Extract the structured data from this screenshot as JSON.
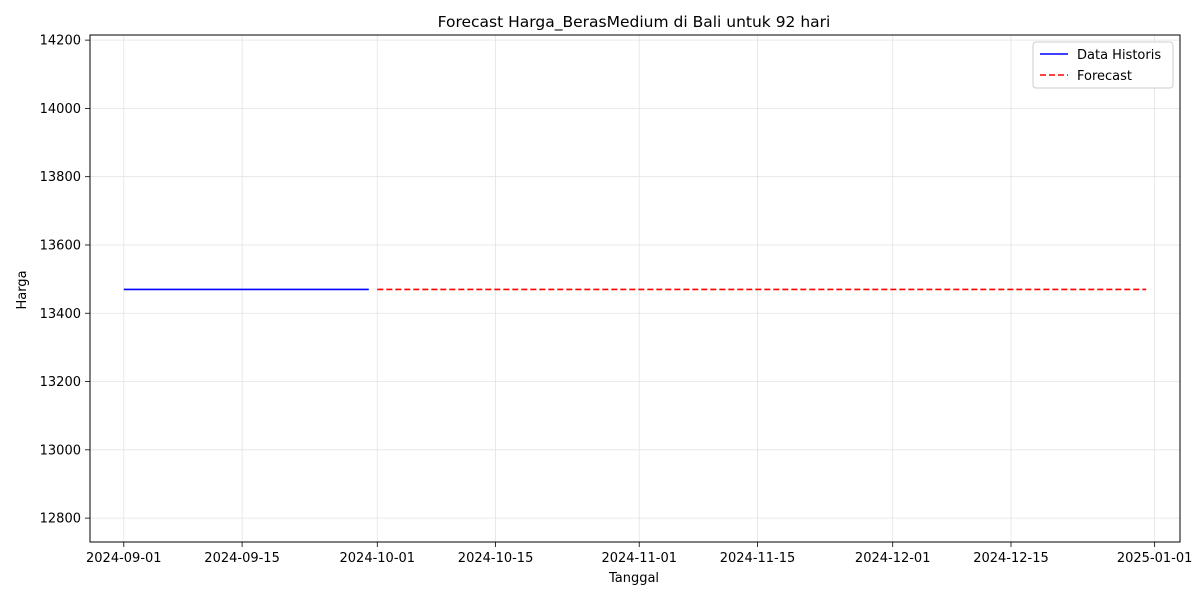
{
  "chart_data": {
    "type": "line",
    "title": "Forecast Harga_BerasMedium di Bali untuk 92 hari",
    "xlabel": "Tanggal",
    "ylabel": "Harga",
    "xlim": [
      "2024-08-28",
      "2025-01-04"
    ],
    "ylim": [
      12730,
      14215
    ],
    "x_ticks": [
      "2024-09-01",
      "2024-09-15",
      "2024-10-01",
      "2024-10-15",
      "2024-11-01",
      "2024-11-15",
      "2024-12-01",
      "2024-12-15",
      "2025-01-01"
    ],
    "y_ticks": [
      12800,
      13000,
      13200,
      13400,
      13600,
      13800,
      14000,
      14200
    ],
    "grid": true,
    "legend_position": "top-right",
    "series": [
      {
        "name": "Data Historis",
        "color": "#0000ff",
        "style": "solid",
        "points": [
          {
            "x": "2024-09-01",
            "y": 13470
          },
          {
            "x": "2024-09-30",
            "y": 13470
          }
        ]
      },
      {
        "name": "Forecast",
        "color": "#ff0000",
        "style": "dashed",
        "points": [
          {
            "x": "2024-10-01",
            "y": 13470
          },
          {
            "x": "2024-12-31",
            "y": 13470
          }
        ]
      }
    ]
  }
}
